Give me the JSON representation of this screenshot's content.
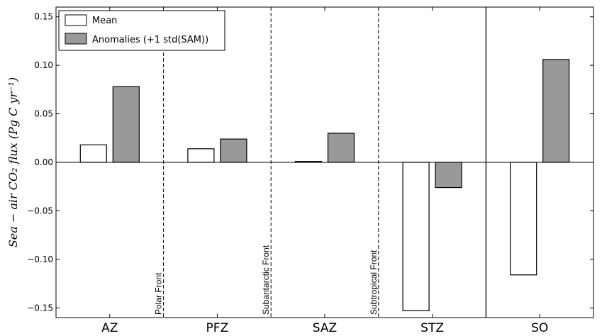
{
  "chart_data": {
    "type": "bar",
    "categories": [
      "AZ",
      "PFZ",
      "SAZ",
      "STZ",
      "SO"
    ],
    "series": [
      {
        "name": "Mean",
        "values": [
          0.018,
          0.014,
          0.001,
          -0.153,
          -0.116
        ]
      },
      {
        "name": "Anomalies (+1 std(SAM))",
        "values": [
          0.078,
          0.024,
          0.03,
          -0.026,
          0.106
        ]
      }
    ],
    "title": "",
    "xlabel": "",
    "ylabel": "Sea − air CO₂ flux (Pg C yr⁻¹)",
    "ylim": [
      -0.16,
      0.16
    ],
    "yticks": [
      -0.15,
      -0.1,
      -0.05,
      0.0,
      0.05,
      0.1,
      0.15
    ],
    "ytick_labels": [
      "−0.15",
      "−0.10",
      "−0.05",
      "0.00",
      "0.05",
      "0.10",
      "0.15"
    ],
    "fronts": [
      "Polar Front",
      "Subantarctic Front",
      "Subtropical Front"
    ],
    "grid": false,
    "legend_position": "top-left",
    "colors": {
      "Mean": "#ffffff",
      "Anomalies (+1 std(SAM))": "#999999",
      "edge": "#000000"
    }
  }
}
